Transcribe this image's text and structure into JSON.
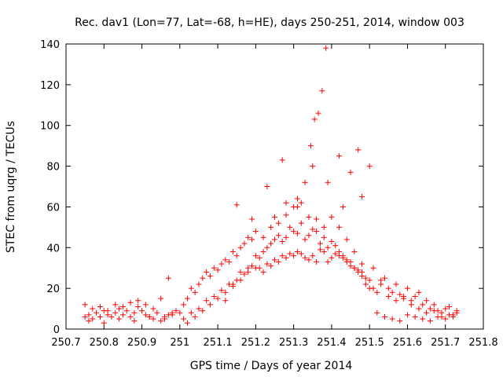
{
  "chart_data": {
    "type": "scatter",
    "title": "Rec. dav1 (Lon=77, Lat=-68, h=HE), days 250-251, 2014, window 003",
    "xlabel": "GPS time / Days of year 2014",
    "ylabel": "STEC from uqrg / TECUs",
    "xlim": [
      250.7,
      251.8
    ],
    "ylim": [
      0,
      140
    ],
    "xticks": [
      "250.7",
      "250.8",
      "250.9",
      "251",
      "251.1",
      "251.2",
      "251.3",
      "251.4",
      "251.5",
      "251.6",
      "251.7",
      "251.8"
    ],
    "yticks": [
      "0",
      "20",
      "40",
      "60",
      "80",
      "100",
      "120",
      "140"
    ],
    "grid": false,
    "legend": "none",
    "marker": "+",
    "color": "#ff0000",
    "series": [
      {
        "x": [
          250.75,
          250.76,
          250.77,
          250.78,
          250.79,
          250.8,
          250.81,
          250.82,
          250.83,
          250.84,
          250.85,
          250.86,
          250.87,
          250.88,
          250.89,
          250.9,
          250.91,
          250.92,
          250.93,
          250.94,
          250.95,
          250.96,
          250.97,
          250.98,
          250.75,
          250.77,
          250.79,
          250.81,
          250.83,
          250.85,
          250.87,
          250.89,
          250.91,
          250.93,
          250.95,
          250.97,
          250.76,
          250.8,
          250.84,
          250.88,
          250.92,
          250.96,
          250.98,
          250.99,
          251.0,
          251.01,
          251.02,
          251.03,
          251.04,
          251.05,
          251.06,
          251.07,
          251.08,
          251.09,
          251.1,
          251.11,
          251.12,
          251.13,
          251.14,
          251.15,
          251.16,
          251.17,
          251.18,
          251.19,
          251.2,
          251.01,
          251.03,
          251.05,
          251.07,
          251.09,
          251.11,
          251.13,
          251.15,
          251.17,
          251.19,
          251.02,
          251.04,
          251.06,
          251.08,
          251.1,
          251.12,
          251.14,
          251.16,
          251.18,
          251.2,
          251.21,
          251.22,
          251.23,
          251.24,
          251.25,
          251.26,
          251.27,
          251.28,
          251.29,
          251.3,
          251.31,
          251.32,
          251.33,
          251.34,
          251.35,
          251.36,
          251.37,
          251.38,
          251.39,
          251.4,
          251.41,
          251.42,
          251.43,
          251.44,
          251.45,
          251.46,
          251.47,
          251.48,
          251.49,
          251.5,
          251.21,
          251.23,
          251.25,
          251.27,
          251.29,
          251.31,
          251.33,
          251.35,
          251.37,
          251.39,
          251.41,
          251.43,
          251.45,
          251.47,
          251.49,
          251.22,
          251.24,
          251.26,
          251.28,
          251.3,
          251.32,
          251.34,
          251.36,
          251.38,
          251.4,
          251.42,
          251.44,
          251.46,
          251.48,
          251.5,
          251.25,
          251.28,
          251.31,
          251.33,
          251.345,
          251.355,
          251.365,
          251.375,
          251.385,
          251.42,
          251.45,
          251.48,
          251.5,
          251.51,
          251.52,
          251.53,
          251.54,
          251.55,
          251.56,
          251.57,
          251.58,
          251.59,
          251.6,
          251.61,
          251.62,
          251.63,
          251.64,
          251.65,
          251.66,
          251.67,
          251.68,
          251.69,
          251.7,
          251.71,
          251.72,
          251.73,
          251.51,
          251.53,
          251.55,
          251.57,
          251.59,
          251.61,
          251.63,
          251.65,
          251.67,
          251.69,
          251.71,
          251.73,
          251.52,
          251.54,
          251.56,
          251.58,
          251.6,
          251.62,
          251.64,
          251.66,
          251.68,
          251.7,
          251.72,
          251.12,
          251.14,
          251.16,
          251.18,
          251.2,
          251.22,
          251.24,
          251.26,
          251.28,
          251.3,
          251.32,
          251.34,
          251.36,
          251.38,
          251.4,
          251.42,
          251.44,
          251.46,
          251.48,
          251.15,
          251.19,
          251.23,
          251.27,
          251.31,
          251.35,
          251.39,
          251.43,
          251.47
        ],
        "y": [
          6,
          7,
          5,
          8,
          6,
          9,
          7,
          6,
          8,
          10,
          7,
          9,
          6,
          8,
          11,
          9,
          7,
          6,
          5,
          8,
          4,
          6,
          7,
          8,
          12,
          10,
          11,
          9,
          12,
          11,
          13,
          14,
          12,
          10,
          15,
          25,
          4,
          3,
          5,
          4,
          6,
          5,
          7,
          9,
          8,
          12,
          15,
          20,
          18,
          22,
          25,
          28,
          26,
          30,
          29,
          32,
          34,
          33,
          38,
          36,
          40,
          42,
          45,
          44,
          48,
          5,
          8,
          10,
          14,
          16,
          19,
          22,
          24,
          27,
          31,
          3,
          6,
          9,
          12,
          15,
          18,
          21,
          24,
          28,
          30,
          35,
          38,
          40,
          42,
          44,
          46,
          43,
          45,
          50,
          48,
          47,
          52,
          44,
          46,
          49,
          48,
          42,
          45,
          40,
          43,
          41,
          38,
          36,
          34,
          33,
          30,
          28,
          26,
          22,
          20,
          30,
          32,
          34,
          36,
          37,
          38,
          35,
          36,
          39,
          33,
          37,
          35,
          31,
          29,
          25,
          28,
          31,
          33,
          35,
          36,
          37,
          34,
          33,
          38,
          35,
          36,
          33,
          30,
          28,
          24,
          55,
          62,
          60,
          72,
          90,
          103,
          106,
          117,
          138,
          85,
          77,
          65,
          80,
          20,
          18,
          22,
          25,
          16,
          18,
          22,
          17,
          15,
          20,
          14,
          16,
          18,
          12,
          14,
          10,
          12,
          9,
          8,
          10,
          11,
          7,
          9,
          30,
          24,
          20,
          14,
          16,
          12,
          10,
          8,
          9,
          6,
          7,
          8,
          8,
          6,
          5,
          4,
          7,
          6,
          5,
          4,
          6,
          5,
          6,
          14,
          22,
          28,
          30,
          36,
          45,
          50,
          52,
          56,
          60,
          62,
          55,
          54,
          50,
          55,
          50,
          44,
          38,
          32,
          61,
          54,
          70,
          83,
          64,
          80,
          72,
          60,
          88
        ]
      }
    ]
  }
}
